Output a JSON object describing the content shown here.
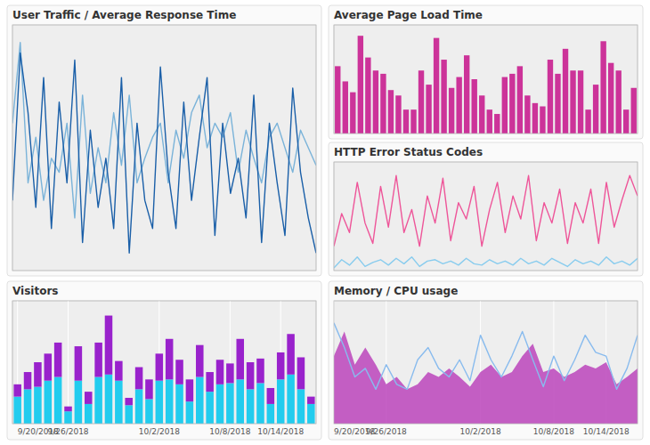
{
  "chart_data": [
    {
      "type": "line",
      "title": "User Traffic / Average Response Time",
      "series": [
        {
          "color": "#7ab3d9",
          "values": [
            72,
            95,
            55,
            68,
            50,
            62,
            58,
            72,
            45,
            80,
            52,
            65,
            55,
            75,
            60,
            80,
            55,
            62,
            68,
            72,
            55,
            70,
            62,
            75,
            80,
            65,
            72,
            68,
            75,
            58,
            70,
            62,
            55,
            68,
            72,
            65,
            58,
            70,
            65,
            60
          ]
        },
        {
          "color": "#1a5fa8",
          "values": [
            50,
            92,
            75,
            48,
            85,
            42,
            78,
            55,
            90,
            38,
            70,
            48,
            62,
            42,
            85,
            35,
            72,
            50,
            42,
            88,
            58,
            42,
            78,
            50,
            68,
            85,
            40,
            72,
            52,
            62,
            45,
            80,
            38,
            72,
            55,
            40,
            82,
            58,
            45,
            35
          ]
        }
      ],
      "ylim": [
        30,
        100
      ],
      "yticks": [],
      "grid": false,
      "tick_labels": false
    },
    {
      "type": "bar",
      "title": "Average Page Load Time",
      "series": [
        {
          "color": "#cc3399",
          "values": [
            62,
            48,
            38,
            90,
            70,
            58,
            55,
            40,
            35,
            22,
            22,
            58,
            45,
            88,
            68,
            42,
            52,
            72,
            50,
            35,
            22,
            18,
            52,
            55,
            62,
            35,
            28,
            25,
            68,
            55,
            78,
            58,
            58,
            22,
            45,
            85,
            65,
            58,
            22,
            42
          ]
        }
      ],
      "ylim": [
        0,
        100
      ],
      "yticks": [],
      "grid": false,
      "tick_labels": false
    },
    {
      "type": "line",
      "title": "HTTP Error Status Codes",
      "series": [
        {
          "color": "#ee5599",
          "values": [
            28,
            52,
            38,
            75,
            45,
            30,
            72,
            42,
            80,
            38,
            55,
            28,
            65,
            45,
            78,
            32,
            60,
            48,
            72,
            28,
            55,
            75,
            38,
            65,
            48,
            80,
            32,
            60,
            45,
            70,
            30,
            60,
            45,
            70,
            30,
            75,
            42,
            62,
            80,
            65
          ]
        },
        {
          "color": "#88ccee",
          "values": [
            12,
            18,
            14,
            20,
            13,
            16,
            18,
            14,
            19,
            15,
            20,
            13,
            17,
            18,
            15,
            17,
            14,
            19,
            15,
            14,
            18,
            15,
            17,
            14,
            19,
            15,
            17,
            14,
            19,
            16,
            13,
            18,
            15,
            17,
            14,
            20,
            15,
            17,
            14,
            19
          ]
        }
      ],
      "ylim": [
        10,
        90
      ],
      "yticks": [],
      "grid": false,
      "tick_labels": false
    },
    {
      "type": "bar",
      "title": "Visitors",
      "stacked": true,
      "categories": [
        "9/20/2018",
        null,
        null,
        null,
        null,
        "9/26/2018",
        null,
        null,
        null,
        null,
        null,
        null,
        null,
        null,
        "10/2/2018",
        null,
        null,
        null,
        null,
        null,
        null,
        "10/8/2018",
        null,
        null,
        null,
        null,
        "10/14/2018",
        null,
        null,
        null
      ],
      "series": [
        {
          "color": "#22ccee",
          "values": [
            22,
            28,
            30,
            35,
            38,
            10,
            35,
            16,
            38,
            40,
            35,
            15,
            28,
            20,
            35,
            36,
            32,
            18,
            38,
            26,
            32,
            33,
            36,
            28,
            33,
            16,
            36,
            40,
            28,
            16
          ]
        },
        {
          "color": "#9922cc",
          "values": [
            10,
            14,
            20,
            22,
            28,
            4,
            28,
            10,
            28,
            48,
            16,
            6,
            18,
            16,
            22,
            33,
            20,
            18,
            26,
            16,
            20,
            16,
            33,
            22,
            20,
            13,
            22,
            33,
            26,
            6
          ]
        }
      ],
      "ylim": [
        0,
        100
      ],
      "yticks": [],
      "grid": true,
      "tick_labels": "x"
    },
    {
      "type": "line",
      "title": "Memory / CPU usage",
      "categories": [
        "9/20/2018",
        null,
        null,
        null,
        null,
        "9/26/2018",
        null,
        null,
        null,
        null,
        null,
        null,
        null,
        null,
        "10/2/2018",
        null,
        null,
        null,
        null,
        null,
        null,
        "10/8/2018",
        null,
        null,
        null,
        null,
        "10/14/2018",
        null,
        null,
        null
      ],
      "series": [
        {
          "type": "area",
          "color": "#bb44bb",
          "values": [
            55,
            75,
            48,
            62,
            48,
            32,
            38,
            28,
            32,
            42,
            38,
            45,
            38,
            30,
            42,
            48,
            38,
            42,
            55,
            65,
            42,
            45,
            38,
            42,
            48,
            45,
            50,
            32,
            38,
            45
          ]
        },
        {
          "type": "line",
          "color": "#88bbee",
          "values": [
            82,
            62,
            38,
            45,
            28,
            48,
            32,
            28,
            52,
            62,
            45,
            38,
            52,
            35,
            72,
            52,
            38,
            55,
            75,
            52,
            30,
            55,
            35,
            52,
            72,
            58,
            55,
            28,
            45,
            72
          ]
        }
      ],
      "ylim": [
        0,
        100
      ],
      "yticks": [],
      "grid": true,
      "tick_labels": "x"
    }
  ]
}
